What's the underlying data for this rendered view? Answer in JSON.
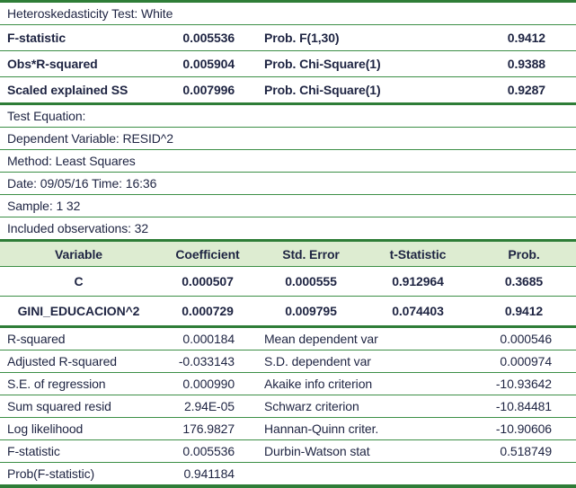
{
  "colors": {
    "rule_green": "#3c8f46",
    "rule_thick_green": "#2e7d37",
    "header_row_bg": "#ddecd1",
    "text": "#1e2442",
    "background": "#ffffff"
  },
  "header": {
    "title": "Heteroskedasticity Test: White"
  },
  "summary_stats": {
    "rows": [
      {
        "label": "F-statistic",
        "value": "0.005536",
        "label2": "Prob. F(1,30)",
        "value2": "0.9412"
      },
      {
        "label": "Obs*R-squared",
        "value": "0.005904",
        "label2": "Prob. Chi-Square(1)",
        "value2": "0.9388"
      },
      {
        "label": "Scaled explained SS",
        "value": "0.007996",
        "label2": "Prob. Chi-Square(1)",
        "value2": "0.9287"
      }
    ]
  },
  "test_info": {
    "lines": [
      "Test Equation:",
      "Dependent Variable: RESID^2",
      "Method: Least Squares",
      "Date: 09/05/16 Time: 16:36",
      "Sample: 1 32",
      "Included observations: 32"
    ]
  },
  "coefficients": {
    "columns": [
      "Variable",
      "Coefficient",
      "Std. Error",
      "t-Statistic",
      "Prob."
    ],
    "rows": [
      {
        "variable": "C",
        "coefficient": "0.000507",
        "std_error": "0.000555",
        "t_statistic": "0.912964",
        "prob": "0.3685"
      },
      {
        "variable": "GINI_EDUCACION^2",
        "coefficient": "0.000729",
        "std_error": "0.009795",
        "t_statistic": "0.074403",
        "prob": "0.9412"
      }
    ]
  },
  "fit_stats": {
    "rows": [
      {
        "label": "R-squared",
        "value": "0.000184",
        "label2": "Mean dependent var",
        "value2": "0.000546"
      },
      {
        "label": "Adjusted R-squared",
        "value": "-0.033143",
        "label2": "S.D. dependent var",
        "value2": "0.000974"
      },
      {
        "label": "S.E. of regression",
        "value": "0.000990",
        "label2": "Akaike info criterion",
        "value2": "-10.93642"
      },
      {
        "label": "Sum squared resid",
        "value": "2.94E-05",
        "label2": "Schwarz criterion",
        "value2": "-10.84481"
      },
      {
        "label": "Log likelihood",
        "value": "176.9827",
        "label2": "Hannan-Quinn criter.",
        "value2": "-10.90606"
      },
      {
        "label": "F-statistic",
        "value": "0.005536",
        "label2": "Durbin-Watson stat",
        "value2": "0.518749"
      },
      {
        "label": "Prob(F-statistic)",
        "value": "0.941184",
        "label2": "",
        "value2": ""
      }
    ]
  }
}
